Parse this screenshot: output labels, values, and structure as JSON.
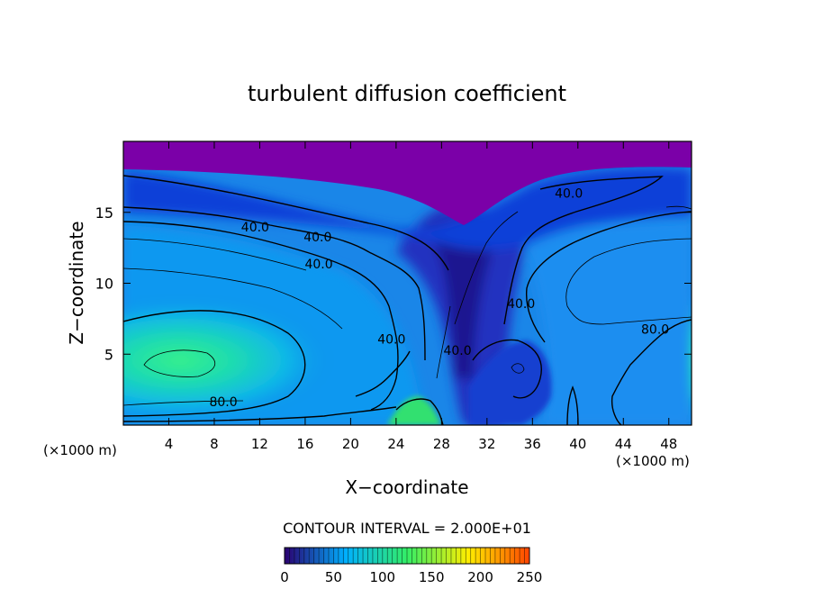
{
  "chart_data": {
    "type": "heatmap",
    "title": "turbulent diffusion coefficient",
    "xlabel": "X−coordinate",
    "ylabel": "Z−coordinate",
    "x_unit_left": "(×1000 m)",
    "x_unit_right": "(×1000 m)",
    "xlim": [
      0,
      50
    ],
    "ylim": [
      0,
      20
    ],
    "x_ticks": [
      4,
      8,
      12,
      16,
      20,
      24,
      28,
      32,
      36,
      40,
      44,
      48
    ],
    "y_ticks": [
      5,
      10,
      15
    ],
    "contour_interval_text": "CONTOUR INTERVAL =  2.000E+01",
    "colorbar": {
      "min": 0,
      "max": 250,
      "ticks": [
        0,
        50,
        100,
        150,
        200,
        250
      ],
      "colors": [
        "#2a0070",
        "#00b0ff",
        "#33ee66",
        "#ffee00",
        "#ff4400"
      ]
    },
    "contour_labels": [
      {
        "text": "40.0",
        "x": 11.6,
        "z": 13.9
      },
      {
        "text": "40.0",
        "x": 17.1,
        "z": 13.2
      },
      {
        "text": "40.0",
        "x": 17.2,
        "z": 11.3
      },
      {
        "text": "40.0",
        "x": 23.6,
        "z": 6.0
      },
      {
        "text": "40.0",
        "x": 29.4,
        "z": 5.2
      },
      {
        "text": "40.0",
        "x": 35.0,
        "z": 8.5
      },
      {
        "text": "40.0",
        "x": 39.2,
        "z": 16.3
      },
      {
        "text": "80.0",
        "x": 46.8,
        "z": 6.7
      },
      {
        "text": "80.0",
        "x": 8.8,
        "z": 1.6
      }
    ],
    "background_color": "#7b00a8"
  }
}
